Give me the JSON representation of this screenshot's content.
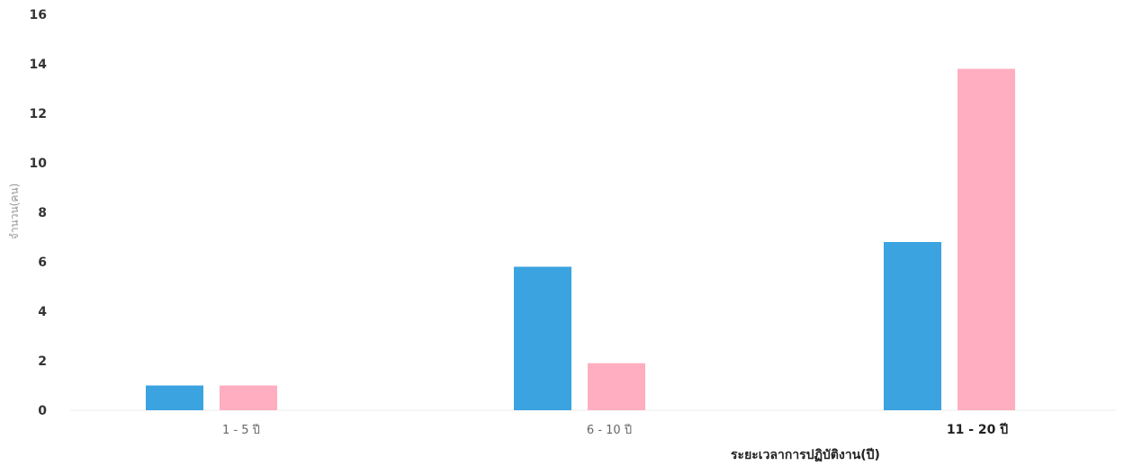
{
  "chart_data": {
    "type": "bar",
    "title": "",
    "xlabel": "ระยะเวลาการปฏิบัติงาน(ปี)",
    "ylabel": "จำนวน(คน)",
    "categories": [
      "1 - 5 ปี",
      "6 - 10 ปี",
      "11 - 20 ปี"
    ],
    "series": [
      {
        "values": [
          1,
          5.8,
          6.8
        ],
        "color": "#3ba3e0"
      },
      {
        "values": [
          1,
          1.9,
          13.8
        ],
        "color": "#ffadc0"
      }
    ],
    "ylim": [
      0,
      16
    ],
    "yticks": [
      0,
      2,
      4,
      6,
      8,
      10,
      12,
      14,
      16
    ],
    "grid": false,
    "legend": "none"
  }
}
